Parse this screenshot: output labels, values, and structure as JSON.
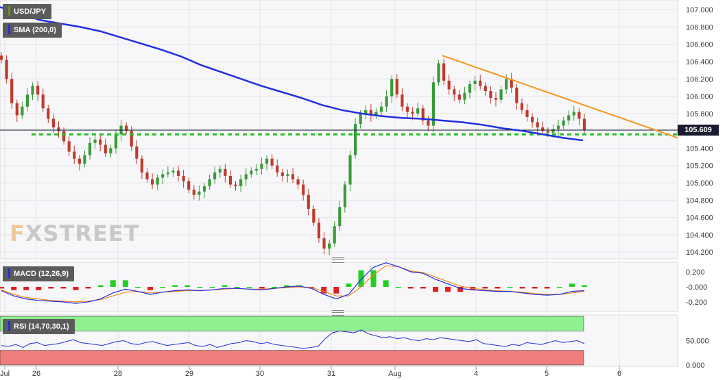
{
  "chart_data": [
    {
      "type": "candlestick",
      "symbol": "USD/JPY",
      "sma_label": "SMA (200,0)",
      "current_price": "105.609",
      "price_axis_ticks": [
        "107.000",
        "106.800",
        "106.600",
        "106.400",
        "106.200",
        "106.000",
        "105.800",
        "105.600",
        "105.400",
        "105.200",
        "105.000",
        "104.800",
        "104.600",
        "104.400",
        "104.200"
      ],
      "ylim": [
        104.17,
        107.08
      ],
      "x_tick_labels": [
        "Jul",
        "26",
        "28",
        "29",
        "30",
        "31",
        "Aug",
        "4",
        "5",
        "6"
      ],
      "support_level": 105.56,
      "trendline": [
        [
          0.0,
          106.47
        ],
        [
          1.0,
          105.52
        ]
      ],
      "close_series": [
        106.42,
        106.2,
        105.92,
        105.78,
        105.88,
        106.02,
        106.12,
        106.02,
        105.86,
        105.74,
        105.64,
        105.6,
        105.48,
        105.36,
        105.28,
        105.22,
        105.32,
        105.46,
        105.5,
        105.44,
        105.34,
        105.4,
        105.56,
        105.66,
        105.6,
        105.42,
        105.28,
        105.12,
        105.04,
        104.98,
        105.06,
        105.1,
        105.12,
        105.14,
        105.08,
        105.02,
        104.92,
        104.86,
        104.9,
        104.96,
        105.04,
        105.12,
        105.16,
        105.08,
        104.98,
        104.96,
        105.04,
        105.1,
        105.14,
        105.16,
        105.22,
        105.28,
        105.2,
        105.12,
        105.08,
        105.1,
        105.04,
        104.98,
        104.86,
        104.7,
        104.54,
        104.36,
        104.24,
        104.3,
        104.5,
        104.72,
        104.98,
        105.32,
        105.68,
        105.8,
        105.84,
        105.78,
        105.82,
        105.88,
        106.0,
        106.2,
        106.02,
        105.88,
        105.82,
        105.8,
        105.86,
        105.72,
        105.66,
        106.16,
        106.38,
        106.18,
        106.08,
        106.02,
        105.96,
        106.04,
        106.14,
        106.18,
        106.12,
        106.06,
        105.98,
        105.96,
        106.08,
        106.2,
        106.1,
        105.92,
        105.84,
        105.76,
        105.7,
        105.64,
        105.6,
        105.58,
        105.62,
        105.66,
        105.72,
        105.78,
        105.82,
        105.74,
        105.61
      ],
      "sma200_series": [
        107.03,
        106.95,
        106.88,
        106.84,
        106.8,
        106.75,
        106.68,
        106.61,
        106.54,
        106.46,
        106.36,
        106.28,
        106.2,
        106.12,
        106.05,
        105.98,
        105.9,
        105.84,
        105.8,
        105.77,
        105.75,
        105.74,
        105.72,
        105.7,
        105.67,
        105.63,
        105.6,
        105.56,
        105.52,
        105.49
      ],
      "sma200_range": [
        0.0,
        0.86
      ],
      "panels": [
        {
          "name": "MACD (12,26,9)",
          "axis_ticks": [
            "0.200",
            "-0.000",
            "-0.200"
          ],
          "ylim": [
            -0.3,
            0.3
          ],
          "macd": [
            -0.05,
            -0.12,
            -0.16,
            -0.18,
            -0.19,
            -0.2,
            -0.22,
            -0.2,
            -0.16,
            -0.08,
            -0.03,
            -0.06,
            -0.1,
            -0.07,
            -0.05,
            -0.04,
            -0.05,
            -0.04,
            -0.02,
            -0.02,
            -0.03,
            -0.04,
            -0.02,
            0.0,
            0.01,
            -0.02,
            -0.1,
            -0.16,
            -0.1,
            0.1,
            0.26,
            0.32,
            0.27,
            0.2,
            0.18,
            0.1,
            0.04,
            -0.02,
            -0.04,
            -0.05,
            -0.06,
            -0.06,
            -0.08,
            -0.1,
            -0.11,
            -0.1,
            -0.06,
            -0.05
          ],
          "signal": [
            -0.04,
            -0.1,
            -0.14,
            -0.16,
            -0.18,
            -0.19,
            -0.2,
            -0.19,
            -0.17,
            -0.12,
            -0.07,
            -0.06,
            -0.08,
            -0.07,
            -0.06,
            -0.05,
            -0.05,
            -0.04,
            -0.03,
            -0.02,
            -0.03,
            -0.03,
            -0.02,
            -0.01,
            0.0,
            -0.01,
            -0.06,
            -0.12,
            -0.12,
            0.0,
            0.16,
            0.28,
            0.27,
            0.21,
            0.19,
            0.13,
            0.07,
            0.01,
            -0.02,
            -0.04,
            -0.05,
            -0.06,
            -0.07,
            -0.09,
            -0.1,
            -0.1,
            -0.08,
            -0.06
          ]
        },
        {
          "name": "RSI (14,70,30,1)",
          "axis_ticks": [
            "50.000",
            "0.000"
          ],
          "ylim": [
            0,
            100
          ],
          "overbought": 70,
          "oversold": 30,
          "rsi": [
            40,
            38,
            42,
            36,
            44,
            46,
            40,
            42,
            44,
            48,
            52,
            46,
            44,
            42,
            40,
            44,
            48,
            50,
            44,
            42,
            46,
            48,
            44,
            40,
            42,
            44,
            46,
            40,
            38,
            42,
            36,
            40,
            44,
            46,
            50,
            48,
            44,
            46,
            42,
            40,
            38,
            36,
            34,
            36,
            38,
            54,
            66,
            70,
            68,
            66,
            72,
            64,
            60,
            56,
            58,
            54,
            56,
            52,
            50,
            54,
            52,
            56,
            54,
            52,
            50,
            48,
            52,
            44,
            42,
            40,
            38,
            42,
            40,
            46,
            44,
            42,
            46,
            50,
            46,
            48,
            50,
            44
          ]
        }
      ]
    }
  ]
}
